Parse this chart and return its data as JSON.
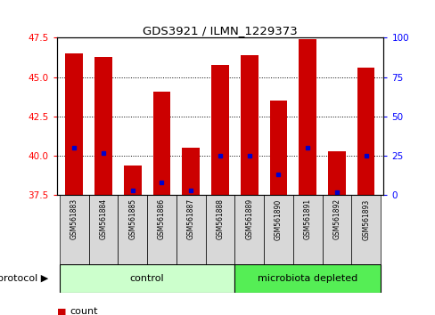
{
  "title": "GDS3921 / ILMN_1229373",
  "samples": [
    "GSM561883",
    "GSM561884",
    "GSM561885",
    "GSM561886",
    "GSM561887",
    "GSM561888",
    "GSM561889",
    "GSM561890",
    "GSM561891",
    "GSM561892",
    "GSM561893"
  ],
  "counts": [
    46.5,
    46.3,
    39.4,
    44.1,
    40.5,
    45.8,
    46.4,
    43.5,
    47.4,
    40.3,
    45.6
  ],
  "percentiles": [
    30,
    27,
    3,
    8,
    3,
    25,
    25,
    13,
    30,
    2,
    25
  ],
  "ylim_left": [
    37.5,
    47.5
  ],
  "ylim_right": [
    0,
    100
  ],
  "yticks_left": [
    37.5,
    40.0,
    42.5,
    45.0,
    47.5
  ],
  "yticks_right": [
    0,
    25,
    50,
    75,
    100
  ],
  "bar_color": "#cc0000",
  "dot_color": "#0000cc",
  "bar_width": 0.6,
  "ctrl_n": 6,
  "micro_n": 5,
  "control_color": "#ccffcc",
  "microbiota_color": "#55ee55",
  "bg_color": "#d8d8d8",
  "plot_bg": "#ffffff",
  "legend_count_color": "#cc0000",
  "legend_pct_color": "#0000cc"
}
